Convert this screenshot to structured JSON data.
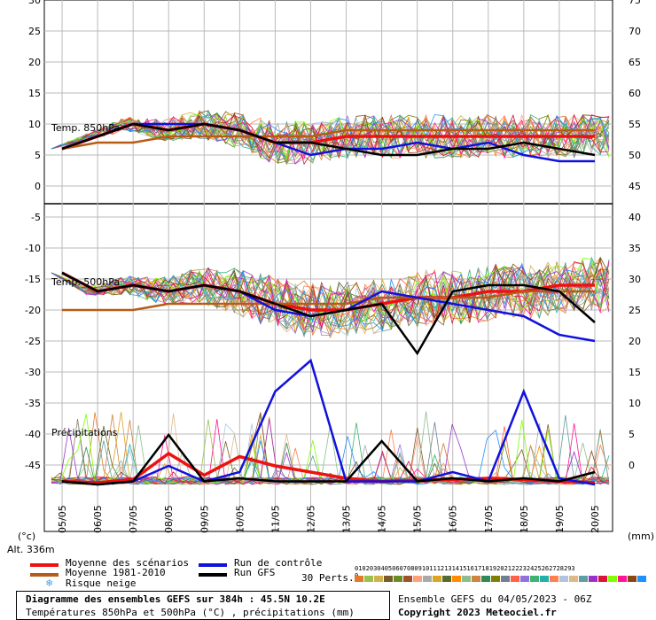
{
  "chart_data": {
    "type": "line",
    "x_dates": [
      "05/05",
      "06/05",
      "07/05",
      "08/05",
      "09/05",
      "10/05",
      "11/05",
      "12/05",
      "13/05",
      "14/05",
      "15/05",
      "16/05",
      "17/05",
      "18/05",
      "19/05",
      "20/05"
    ],
    "left_axis": {
      "unit": "(°c)",
      "ticks": [
        30,
        25,
        20,
        15,
        10,
        5,
        0,
        -5,
        -10,
        -15,
        -20,
        -25,
        -30,
        -35,
        -40,
        -45
      ]
    },
    "right_axis": {
      "unit": "(mm)",
      "ticks": [
        75,
        70,
        65,
        60,
        55,
        50,
        45,
        40,
        35,
        30,
        25,
        20,
        15,
        10,
        5,
        0
      ]
    },
    "panels": {
      "t850": {
        "label": "Temp. 850hPa"
      },
      "t500": {
        "label": "Temp. 500hPa"
      },
      "precip": {
        "label": "Précipitations"
      }
    },
    "series": [
      {
        "name": "Moyenne des scénarios",
        "color": "#ee1111",
        "panel": "t850",
        "values": [
          6,
          8,
          10,
          9,
          10,
          9,
          7,
          7,
          8,
          8,
          8,
          8,
          8,
          8,
          8,
          8
        ]
      },
      {
        "name": "Moyenne 1981-2010",
        "color": "#b85b14",
        "panel": "t850",
        "values": [
          6,
          7,
          7,
          8,
          8,
          8,
          8,
          8,
          9,
          9,
          9,
          9,
          9,
          9,
          9,
          9
        ]
      },
      {
        "name": "Run de contrôle",
        "color": "#1111dd",
        "panel": "t850",
        "values": [
          6,
          8,
          10,
          10,
          10,
          9,
          7,
          5,
          6,
          6,
          7,
          6,
          7,
          5,
          4,
          4
        ]
      },
      {
        "name": "Run GFS",
        "color": "#000000",
        "panel": "t850",
        "values": [
          6,
          8,
          10,
          9,
          10,
          9,
          7,
          7,
          6,
          5,
          5,
          6,
          6,
          7,
          6,
          5
        ]
      },
      {
        "name": "Moyenne des scénarios",
        "color": "#ee1111",
        "panel": "t500",
        "values": [
          -14,
          -17,
          -16,
          -17,
          -16,
          -17,
          -19,
          -20,
          -20,
          -19,
          -18,
          -18,
          -17,
          -17,
          -16,
          -16
        ]
      },
      {
        "name": "Moyenne 1981-2010",
        "color": "#b85b14",
        "panel": "t500",
        "values": [
          -20,
          -20,
          -20,
          -19,
          -19,
          -19,
          -19,
          -19,
          -19,
          -18,
          -18,
          -18,
          -18,
          -17,
          -17,
          -17
        ]
      },
      {
        "name": "Run de contrôle",
        "color": "#1111dd",
        "panel": "t500",
        "values": [
          -14,
          -17,
          -16,
          -17,
          -16,
          -17,
          -20,
          -21,
          -20,
          -17,
          -18,
          -19,
          -20,
          -21,
          -24,
          -25
        ]
      },
      {
        "name": "Run GFS",
        "color": "#000000",
        "panel": "t500",
        "values": [
          -14,
          -17,
          -16,
          -17,
          -16,
          -17,
          -19,
          -21,
          -20,
          -19,
          -27,
          -17,
          -16,
          -16,
          -17,
          -22
        ]
      },
      {
        "name": "Moyenne des scénarios",
        "color": "#ee1111",
        "panel": "precip",
        "values": [
          0.5,
          0.3,
          0.8,
          5,
          1.5,
          4.5,
          3,
          2,
          1,
          0.5,
          0.7,
          0.8,
          1,
          0.8,
          0.5,
          0.3
        ]
      },
      {
        "name": "Run de contrôle",
        "color": "#1111dd",
        "panel": "precip",
        "values": [
          0.5,
          0,
          0.5,
          3,
          0.5,
          2,
          15,
          20,
          0.5,
          0.5,
          0.5,
          2,
          0.5,
          15,
          1,
          0
        ]
      },
      {
        "name": "Run GFS",
        "color": "#000000",
        "panel": "precip",
        "values": [
          0.5,
          0,
          0.5,
          8,
          0.5,
          1,
          0.5,
          0.5,
          0.5,
          7,
          0.5,
          1,
          0.5,
          1,
          0.5,
          2
        ]
      }
    ],
    "grid": true,
    "legend": "bottom-left"
  },
  "header": {
    "altitude": "Alt. 336m",
    "left_unit": "(°c)",
    "right_unit": "(mm)"
  },
  "legend": {
    "mean": "Moyenne des scénarios",
    "climo": "Moyenne 1981-2010",
    "snow": "Risque neige",
    "control": "Run de contrôle",
    "gfs": "Run GFS",
    "perts_label": "30 Perts.",
    "pert_numbers": "01020304050607080910111213141516171819202122232425262728293 0",
    "pert_colors": [
      "#e07b2c",
      "#9ac24a",
      "#d0b24c",
      "#7a5c2a",
      "#6b8e23",
      "#a0522d",
      "#ffa07a",
      "#a9a9a9",
      "#daa520",
      "#556b2f",
      "#ff8c00",
      "#8fbc8f",
      "#cd853f",
      "#2e8b57",
      "#808000",
      "#708090",
      "#ff6347",
      "#9370db",
      "#3cb371",
      "#20b2aa",
      "#ff7f50",
      "#b0c4de",
      "#deb887",
      "#5f9ea0",
      "#9932cc",
      "#dc143c",
      "#7fff00",
      "#ff1493",
      "#8b4513",
      "#1e90ff"
    ]
  },
  "footer": {
    "title": "Diagramme des ensembles GEFS sur 384h : 45.5N 10.2E",
    "subtitle": "Températures 850hPa et 500hPa (°C) , précipitations (mm)",
    "run": "Ensemble GEFS du 04/05/2023 - 06Z",
    "copyright": "Copyright 2023 Meteociel.fr"
  }
}
